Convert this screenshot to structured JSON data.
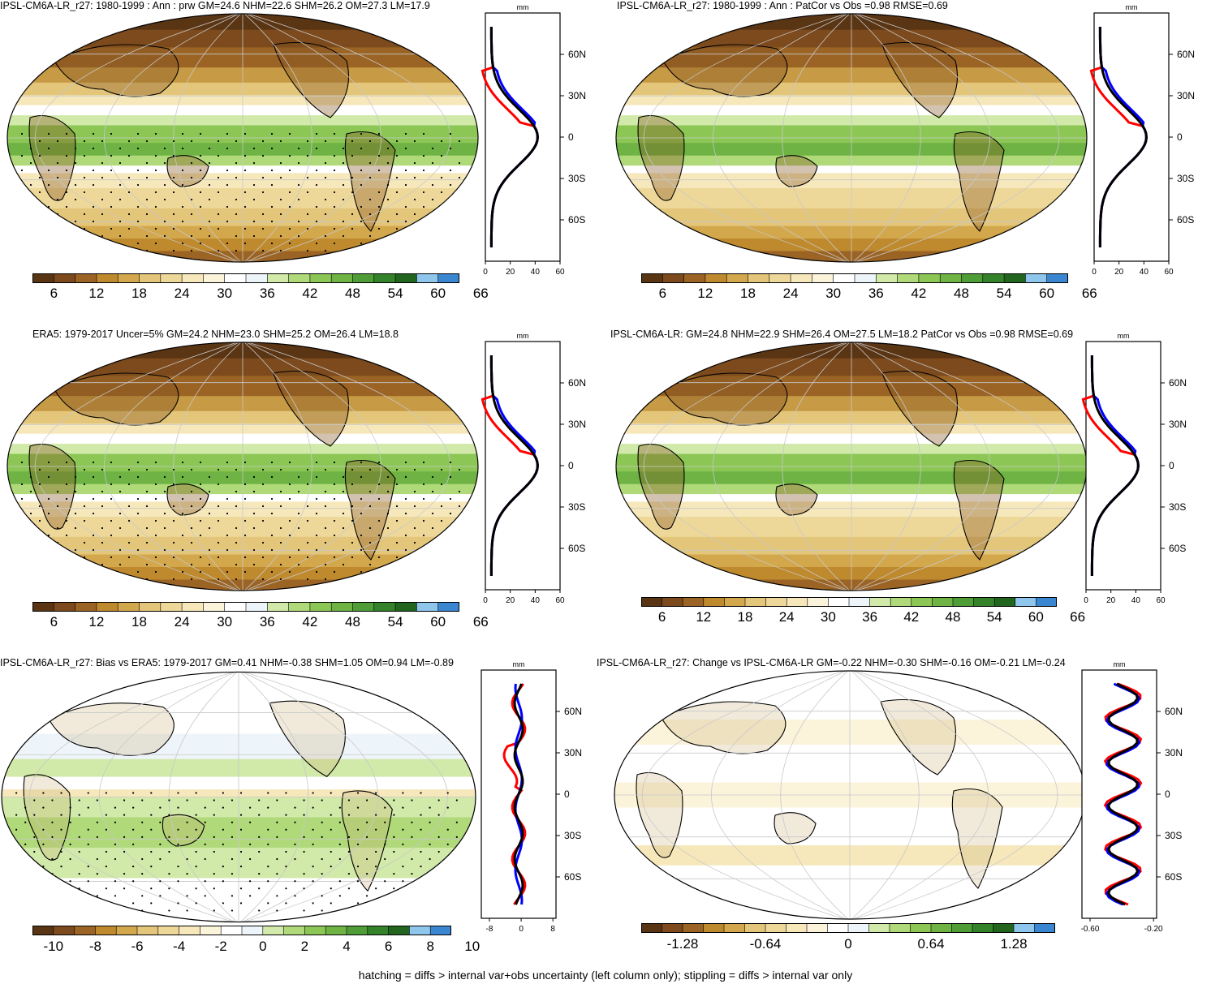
{
  "palette": {
    "abs": [
      "#5a3514",
      "#7c4a1c",
      "#9b6425",
      "#bf8a2e",
      "#d3a84d",
      "#e4c67a",
      "#eed899",
      "#f6e8bb",
      "#fbf3da",
      "#ffffff",
      "#eef5fa",
      "#d1e9a9",
      "#b0d97a",
      "#8cc756",
      "#6eb344",
      "#4f9d36",
      "#34822a",
      "#22651f",
      "#8fc6ec",
      "#3a86d0"
    ],
    "diff": [
      "#5a3514",
      "#7c4a1c",
      "#9b6425",
      "#bf8a2e",
      "#d3a84d",
      "#e4c67a",
      "#eed899",
      "#f6e8bb",
      "#fbf3da",
      "#ffffff",
      "#eef5fa",
      "#d1e9a9",
      "#b0d97a",
      "#8cc756",
      "#6eb344",
      "#4f9d36",
      "#34822a",
      "#22651f",
      "#8fc6ec",
      "#3a86d0"
    ]
  },
  "line_colors": {
    "model": "#ff0000",
    "obs": "#0000ff",
    "third": "#000000"
  },
  "panels": [
    {
      "title": "IPSL-CM6A-LR_r27: 1980-1999 : Ann : prw GM=24.6 NHM=22.6 SHM=26.2 OM=27.3 LM=17.9",
      "colorbar_labels": [
        "6",
        "12",
        "18",
        "24",
        "30",
        "36",
        "42",
        "48",
        "54",
        "60",
        "66"
      ],
      "profile_unit": "mm",
      "profile_xticks": [
        "0",
        "20",
        "40",
        "60"
      ],
      "profile_yticks": [
        "60N",
        "30N",
        "0",
        "30S",
        "60S"
      ],
      "kind": "abs"
    },
    {
      "title": "IPSL-CM6A-LR_r27: 1980-1999 : Ann : PatCor vs Obs =0.98 RMSE=0.69",
      "colorbar_labels": [
        "6",
        "12",
        "18",
        "24",
        "30",
        "36",
        "42",
        "48",
        "54",
        "60",
        "66"
      ],
      "profile_unit": "mm",
      "profile_xticks": [
        "0",
        "20",
        "40",
        "60"
      ],
      "profile_yticks": [
        "60N",
        "30N",
        "0",
        "30S",
        "60S"
      ],
      "kind": "abs"
    },
    {
      "title": "ERA5: 1979-2017 Uncer=5% GM=24.2 NHM=23.0 SHM=25.2 OM=26.4 LM=18.8",
      "colorbar_labels": [
        "6",
        "12",
        "18",
        "24",
        "30",
        "36",
        "42",
        "48",
        "54",
        "60",
        "66"
      ],
      "profile_unit": "mm",
      "profile_xticks": [
        "0",
        "20",
        "40",
        "60"
      ],
      "profile_yticks": [
        "60N",
        "30N",
        "0",
        "30S",
        "60S"
      ],
      "kind": "abs"
    },
    {
      "title": "IPSL-CM6A-LR: GM=24.8 NHM=22.9 SHM=26.4 OM=27.5 LM=18.2 PatCor vs Obs =0.98 RMSE=0.69",
      "colorbar_labels": [
        "6",
        "12",
        "18",
        "24",
        "30",
        "36",
        "42",
        "48",
        "54",
        "60",
        "66"
      ],
      "profile_unit": "mm",
      "profile_xticks": [
        "0",
        "20",
        "40",
        "60"
      ],
      "profile_yticks": [
        "60N",
        "30N",
        "0",
        "30S",
        "60S"
      ],
      "kind": "abs"
    },
    {
      "title": "IPSL-CM6A-LR_r27: Bias vs ERA5: 1979-2017 GM=0.41 NHM=-0.38 SHM=1.05 OM=0.94 LM=-0.89",
      "colorbar_labels": [
        "-10",
        "-8",
        "-6",
        "-4",
        "-2",
        "0",
        "2",
        "4",
        "6",
        "8",
        "10"
      ],
      "profile_unit": "mm",
      "profile_xticks": [
        "-8",
        "0",
        "8"
      ],
      "profile_yticks": [
        "60N",
        "30N",
        "0",
        "30S",
        "60S"
      ],
      "kind": "bias"
    },
    {
      "title": "IPSL-CM6A-LR_r27: Change vs IPSL-CM6A-LR GM=-0.22 NHM=-0.30 SHM=-0.16 OM=-0.21 LM=-0.24",
      "colorbar_labels": [
        "-1.28",
        "-0.64",
        "0",
        "0.64",
        "1.28"
      ],
      "profile_unit": "mm",
      "profile_xticks": [
        "-0.60",
        "-0.20"
      ],
      "profile_yticks": [
        "60N",
        "30N",
        "0",
        "30S",
        "60S"
      ],
      "kind": "change"
    }
  ],
  "footer": "hatching = diffs > internal var+obs uncertainty (left column only); stippling = diffs > internal var only"
}
